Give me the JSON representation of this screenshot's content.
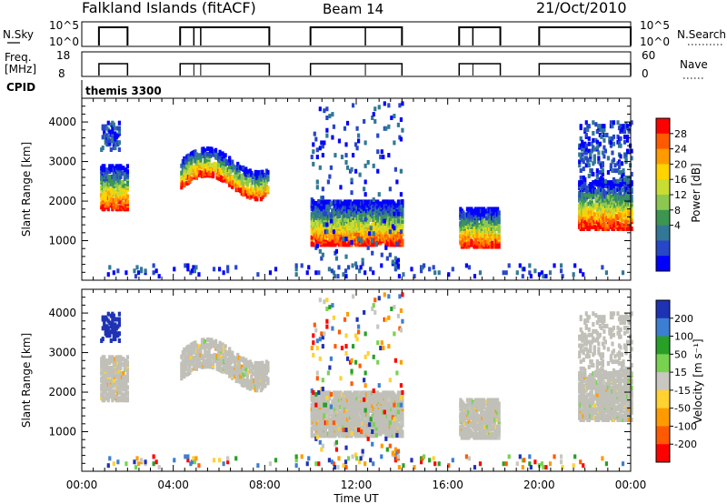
{
  "header": {
    "title": "Falkland Islands (fitACF)",
    "beam": "Beam 14",
    "date": "21/Oct/2010"
  },
  "top_panels": {
    "nsky_label": "N.Sky",
    "nsky_ticks": [
      "10^5",
      "10^0"
    ],
    "nsky_right_ticks": [
      "10^5",
      "10^0"
    ],
    "nsearch_label": "N.Search",
    "freq_label_1": "Freq.",
    "freq_label_2": "[MHz]",
    "freq_ticks": [
      "18",
      "8"
    ],
    "nave_ticks": [
      "60",
      "0"
    ],
    "nave_label": "Nave",
    "cpid_label": "CPID",
    "cpid_value": "themis 3300"
  },
  "chart_data": [
    {
      "type": "heatmap",
      "name": "power",
      "xlabel": "",
      "ylabel": "Slant Range [km]",
      "xlim": [
        0,
        24
      ],
      "ylim": [
        0,
        4600
      ],
      "yticks": [
        1000,
        2000,
        3000,
        4000
      ],
      "colorbar": {
        "label": "Power [dB]",
        "ticks": [
          "28",
          "24",
          "20",
          "16",
          "12",
          "8",
          "4"
        ],
        "colors": [
          "#ff0000",
          "#ff5a00",
          "#ff9b00",
          "#ffd400",
          "#c8dc32",
          "#8cc850",
          "#3c9650",
          "#327896",
          "#2846c8",
          "#0000ff"
        ]
      }
    },
    {
      "type": "heatmap",
      "name": "velocity",
      "xlabel": "Time UT",
      "ylabel": "Slant Range [km]",
      "xlim": [
        0,
        24
      ],
      "ylim": [
        0,
        4600
      ],
      "yticks": [
        1000,
        2000,
        3000,
        4000
      ],
      "xticks": [
        "00:00",
        "04:00",
        "08:00",
        "12:00",
        "16:00",
        "20:00",
        "00:00"
      ],
      "colorbar": {
        "label": "Velocity [m s⁻¹]",
        "ticks": [
          "200",
          "100",
          "50",
          "15",
          "-15",
          "-50",
          "-100",
          "-200"
        ],
        "colors": [
          "#1e32b4",
          "#3c7ed2",
          "#28a028",
          "#78d250",
          "#c8c8c0",
          "#ffd232",
          "#ff9b00",
          "#ff5a00",
          "#ff0000"
        ]
      }
    }
  ],
  "scan_segments": [
    [
      0.75,
      2.0
    ],
    [
      4.3,
      8.2
    ],
    [
      10.0,
      14.0
    ],
    [
      16.5,
      18.3
    ],
    [
      20.0,
      24.0
    ]
  ],
  "colors": {
    "ground_scatter": "#c0c0b8",
    "axis": "#000000"
  }
}
